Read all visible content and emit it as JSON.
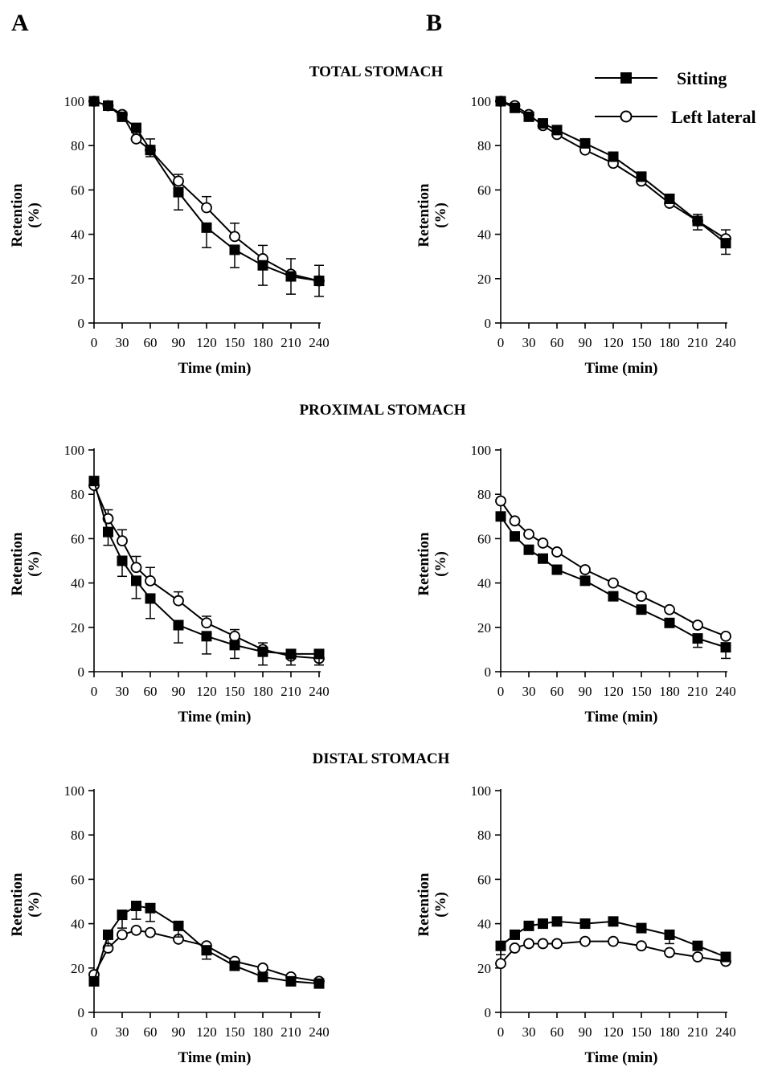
{
  "figure": {
    "panel_letters": [
      "A",
      "B"
    ],
    "section_titles": [
      "TOTAL STOMACH",
      "PROXIMAL STOMACH",
      "DISTAL STOMACH"
    ],
    "legend": [
      {
        "label": "Sitting",
        "marker": "filled-square"
      },
      {
        "label": "Left lateral",
        "marker": "open-circle"
      }
    ],
    "colors": {
      "ink": "#000000",
      "background": "#ffffff"
    }
  },
  "chart_data": [
    {
      "type": "line",
      "panel": "A",
      "section": "TOTAL STOMACH",
      "xlabel": "Time (min)",
      "ylabel": "Retention",
      "ylabel_unit": "(%)",
      "xlim": [
        0,
        240
      ],
      "ylim": [
        0,
        100
      ],
      "xticks": [
        0,
        30,
        60,
        90,
        120,
        150,
        180,
        210,
        240
      ],
      "yticks": [
        0,
        20,
        40,
        60,
        80,
        100
      ],
      "x": [
        0,
        15,
        30,
        45,
        60,
        90,
        120,
        150,
        180,
        210,
        240
      ],
      "series": [
        {
          "name": "Sitting",
          "marker": "filled-square",
          "values": [
            100,
            98,
            93,
            88,
            78,
            59,
            43,
            33,
            26,
            21,
            19
          ],
          "errors": [
            0,
            1,
            2,
            2,
            3,
            8,
            9,
            8,
            9,
            8,
            7
          ]
        },
        {
          "name": "Left lateral",
          "marker": "open-circle",
          "values": [
            100,
            98,
            94,
            83,
            78,
            64,
            52,
            39,
            29,
            22,
            19
          ],
          "errors": [
            0,
            1,
            1,
            3,
            5,
            3,
            5,
            6,
            6,
            7,
            7
          ]
        }
      ]
    },
    {
      "type": "line",
      "panel": "B",
      "section": "TOTAL STOMACH",
      "xlabel": "Time (min)",
      "ylabel": "Retention",
      "ylabel_unit": "(%)",
      "xlim": [
        0,
        240
      ],
      "ylim": [
        0,
        100
      ],
      "xticks": [
        0,
        30,
        60,
        90,
        120,
        150,
        180,
        210,
        240
      ],
      "yticks": [
        0,
        20,
        40,
        60,
        80,
        100
      ],
      "x": [
        0,
        15,
        30,
        45,
        60,
        90,
        120,
        150,
        180,
        210,
        240
      ],
      "series": [
        {
          "name": "Sitting",
          "marker": "filled-square",
          "values": [
            100,
            97,
            93,
            90,
            87,
            81,
            75,
            66,
            56,
            46,
            36
          ],
          "errors": [
            0,
            1,
            1,
            1,
            1,
            1,
            1,
            2,
            2,
            4,
            5
          ]
        },
        {
          "name": "Left lateral",
          "marker": "open-circle",
          "values": [
            100,
            98,
            94,
            89,
            85,
            78,
            72,
            64,
            54,
            46,
            38
          ],
          "errors": [
            0,
            1,
            1,
            1,
            1,
            1,
            1,
            2,
            2,
            3,
            4
          ]
        }
      ]
    },
    {
      "type": "line",
      "panel": "A",
      "section": "PROXIMAL STOMACH",
      "xlabel": "Time (min)",
      "ylabel": "Retention",
      "ylabel_unit": "(%)",
      "xlim": [
        0,
        240
      ],
      "ylim": [
        0,
        100
      ],
      "xticks": [
        0,
        30,
        60,
        90,
        120,
        150,
        180,
        210,
        240
      ],
      "yticks": [
        0,
        20,
        40,
        60,
        80,
        100
      ],
      "x": [
        0,
        15,
        30,
        45,
        60,
        90,
        120,
        150,
        180,
        210,
        240
      ],
      "series": [
        {
          "name": "Sitting",
          "marker": "filled-square",
          "values": [
            86,
            63,
            50,
            41,
            33,
            21,
            16,
            12,
            9,
            8,
            8
          ],
          "errors": [
            2,
            6,
            7,
            8,
            9,
            8,
            8,
            6,
            6,
            5,
            5
          ]
        },
        {
          "name": "Left lateral",
          "marker": "open-circle",
          "values": [
            84,
            69,
            59,
            47,
            41,
            32,
            22,
            16,
            10,
            7,
            6
          ],
          "errors": [
            2,
            4,
            5,
            5,
            6,
            4,
            3,
            3,
            3,
            3,
            3
          ]
        }
      ]
    },
    {
      "type": "line",
      "panel": "B",
      "section": "PROXIMAL STOMACH",
      "xlabel": "Time (min)",
      "ylabel": "Retention",
      "ylabel_unit": "(%)",
      "xlim": [
        0,
        240
      ],
      "ylim": [
        0,
        100
      ],
      "xticks": [
        0,
        30,
        60,
        90,
        120,
        150,
        180,
        210,
        240
      ],
      "yticks": [
        0,
        20,
        40,
        60,
        80,
        100
      ],
      "x": [
        0,
        15,
        30,
        45,
        60,
        90,
        120,
        150,
        180,
        210,
        240
      ],
      "series": [
        {
          "name": "Sitting",
          "marker": "filled-square",
          "values": [
            70,
            61,
            55,
            51,
            46,
            41,
            34,
            28,
            22,
            15,
            11
          ],
          "errors": [
            1,
            1,
            1,
            1,
            1,
            1,
            1,
            1,
            2,
            4,
            5
          ]
        },
        {
          "name": "Left lateral",
          "marker": "open-circle",
          "values": [
            77,
            68,
            62,
            58,
            54,
            46,
            40,
            34,
            28,
            21,
            16
          ],
          "errors": [
            1,
            1,
            1,
            1,
            1,
            1,
            1,
            1,
            1,
            1,
            1
          ]
        }
      ]
    },
    {
      "type": "line",
      "panel": "A",
      "section": "DISTAL STOMACH",
      "xlabel": "Time (min)",
      "ylabel": "Retention",
      "ylabel_unit": "(%)",
      "xlim": [
        0,
        240
      ],
      "ylim": [
        0,
        100
      ],
      "xticks": [
        0,
        30,
        60,
        90,
        120,
        150,
        180,
        210,
        240
      ],
      "yticks": [
        0,
        20,
        40,
        60,
        80,
        100
      ],
      "x": [
        0,
        15,
        30,
        45,
        60,
        90,
        120,
        150,
        180,
        210,
        240
      ],
      "series": [
        {
          "name": "Sitting",
          "marker": "filled-square",
          "values": [
            14,
            35,
            44,
            48,
            47,
            39,
            28,
            21,
            16,
            14,
            13
          ],
          "errors": [
            2,
            5,
            6,
            6,
            6,
            5,
            4,
            2,
            2,
            1,
            1
          ]
        },
        {
          "name": "Left lateral",
          "marker": "open-circle",
          "values": [
            17,
            29,
            35,
            37,
            36,
            33,
            30,
            23,
            20,
            16,
            14
          ],
          "errors": [
            1,
            1,
            1,
            1,
            1,
            1,
            1,
            1,
            1,
            1,
            1
          ]
        }
      ]
    },
    {
      "type": "line",
      "panel": "B",
      "section": "DISTAL STOMACH",
      "xlabel": "Time (min)",
      "ylabel": "Retention",
      "ylabel_unit": "(%)",
      "xlim": [
        0,
        240
      ],
      "ylim": [
        0,
        100
      ],
      "xticks": [
        0,
        30,
        60,
        90,
        120,
        150,
        180,
        210,
        240
      ],
      "yticks": [
        0,
        20,
        40,
        60,
        80,
        100
      ],
      "x": [
        0,
        15,
        30,
        45,
        60,
        90,
        120,
        150,
        180,
        210,
        240
      ],
      "series": [
        {
          "name": "Sitting",
          "marker": "filled-square",
          "values": [
            30,
            35,
            39,
            40,
            41,
            40,
            41,
            38,
            35,
            30,
            25
          ],
          "errors": [
            4,
            2,
            1,
            1,
            1,
            1,
            1,
            2,
            4,
            1,
            1
          ]
        },
        {
          "name": "Left lateral",
          "marker": "open-circle",
          "values": [
            22,
            29,
            31,
            31,
            31,
            32,
            32,
            30,
            27,
            25,
            23
          ],
          "errors": [
            1,
            1,
            1,
            1,
            1,
            1,
            1,
            1,
            1,
            1,
            1
          ]
        }
      ]
    }
  ]
}
